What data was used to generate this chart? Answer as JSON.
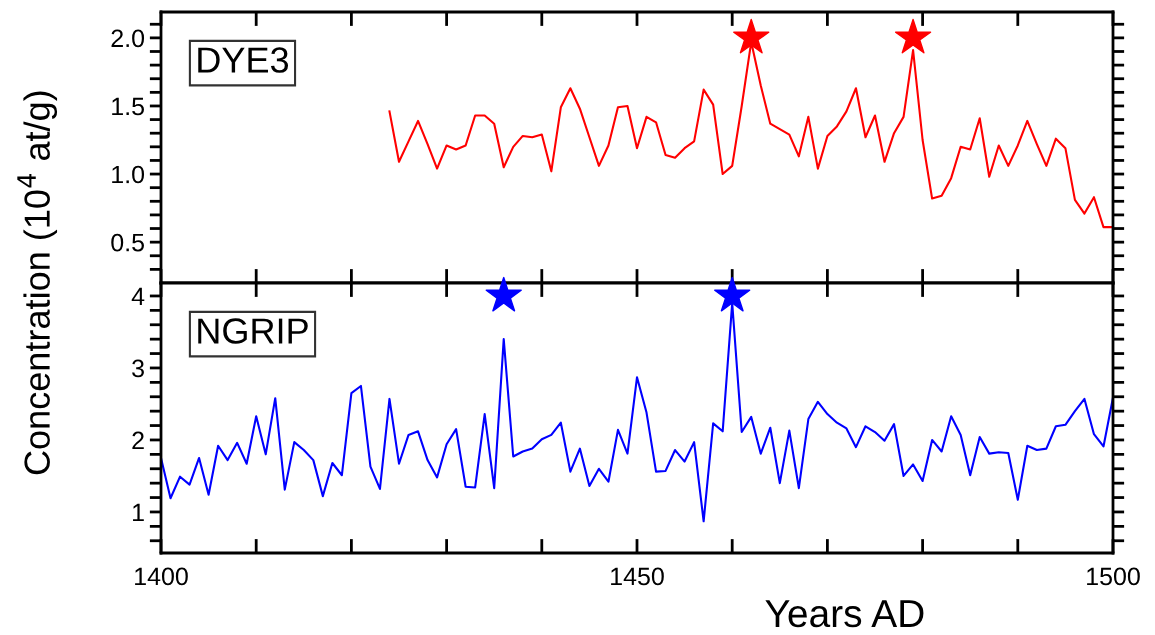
{
  "chart_data": [
    {
      "type": "line",
      "ylabel": "Concentration (10$^{4}$ at/g)",
      "xlim": [
        1400,
        1500
      ],
      "ylim": [
        0.2,
        2.19
      ],
      "xticks": [
        {
          "value": 1400,
          "label": null
        },
        {
          "value": 1410,
          "label": null
        },
        {
          "value": 1420,
          "label": null
        },
        {
          "value": 1430,
          "label": null
        },
        {
          "value": 1440,
          "label": null
        },
        {
          "value": 1450,
          "label": null
        },
        {
          "value": 1460,
          "label": null
        },
        {
          "value": 1470,
          "label": null
        },
        {
          "value": 1480,
          "label": null
        },
        {
          "value": 1490,
          "label": null
        },
        {
          "value": 1500,
          "label": null
        }
      ],
      "yticks": [
        {
          "value": 0.3,
          "label": null
        },
        {
          "value": 0.4,
          "label": null
        },
        {
          "value": 0.5,
          "label": "0.5"
        },
        {
          "value": 0.6,
          "label": null
        },
        {
          "value": 0.7,
          "label": null
        },
        {
          "value": 0.8,
          "label": null
        },
        {
          "value": 0.9,
          "label": null
        },
        {
          "value": 1.0,
          "label": "1.0"
        },
        {
          "value": 1.1,
          "label": null
        },
        {
          "value": 1.2,
          "label": null
        },
        {
          "value": 1.3,
          "label": null
        },
        {
          "value": 1.4,
          "label": null
        },
        {
          "value": 1.5,
          "label": "1.5"
        },
        {
          "value": 1.6,
          "label": null
        },
        {
          "value": 1.7,
          "label": null
        },
        {
          "value": 1.8,
          "label": null
        },
        {
          "value": 1.9,
          "label": null
        },
        {
          "value": 2.0,
          "label": "2.0"
        },
        {
          "value": 2.1,
          "label": null
        }
      ],
      "tick_labels": "y",
      "grid": false,
      "legend": "top left",
      "line_style": "solid",
      "series": [
        {
          "name": "DYE3",
          "color": "#ff0000",
          "marker": "none",
          "x": [
            1424,
            1425,
            1426,
            1427,
            1428,
            1429,
            1430,
            1431,
            1432,
            1433,
            1434,
            1435,
            1436,
            1437,
            1438,
            1439,
            1440,
            1441,
            1442,
            1443,
            1444,
            1445,
            1446,
            1447,
            1448,
            1449,
            1450,
            1451,
            1452,
            1453,
            1454,
            1455,
            1456,
            1457,
            1458,
            1459,
            1460,
            1461,
            1462,
            1463,
            1464,
            1465,
            1466,
            1467,
            1468,
            1469,
            1470,
            1471,
            1472,
            1473,
            1474,
            1475,
            1476,
            1477,
            1478,
            1479,
            1480,
            1481,
            1482,
            1483,
            1484,
            1485,
            1486,
            1487,
            1488,
            1489,
            1490,
            1491,
            1492,
            1493,
            1494,
            1495,
            1496,
            1497,
            1498,
            1499,
            1500
          ],
          "values": [
            1.46,
            1.09,
            1.24,
            1.39,
            1.22,
            1.04,
            1.21,
            1.18,
            1.21,
            1.43,
            1.43,
            1.37,
            1.05,
            1.2,
            1.28,
            1.27,
            1.29,
            1.02,
            1.49,
            1.63,
            1.48,
            1.27,
            1.06,
            1.21,
            1.49,
            1.5,
            1.19,
            1.42,
            1.38,
            1.14,
            1.12,
            1.19,
            1.24,
            1.62,
            1.51,
            1.0,
            1.06,
            1.5,
            1.97,
            1.65,
            1.37,
            1.33,
            1.29,
            1.13,
            1.42,
            1.04,
            1.28,
            1.35,
            1.46,
            1.63,
            1.27,
            1.43,
            1.09,
            1.3,
            1.42,
            1.91,
            1.25,
            0.82,
            0.84,
            0.97,
            1.2,
            1.18,
            1.41,
            0.98,
            1.21,
            1.06,
            1.21,
            1.39,
            1.22,
            1.06,
            1.26,
            1.19,
            0.81,
            0.71,
            0.83,
            0.61,
            0.61
          ]
        },
        {
          "type": "scatter",
          "color": "#ff0000",
          "marker": "star",
          "x": [
            1462,
            1479
          ],
          "values": [
            2.0,
            2.0
          ]
        }
      ]
    },
    {
      "type": "line",
      "xlabel": "Years AD",
      "xlim": [
        1400,
        1500
      ],
      "ylim": [
        0.43,
        4.18
      ],
      "xticks": [
        1400,
        {
          "value": 1410,
          "label": null
        },
        {
          "value": 1420,
          "label": null
        },
        {
          "value": 1430,
          "label": null
        },
        {
          "value": 1440,
          "label": null
        },
        1450,
        {
          "value": 1460,
          "label": null
        },
        {
          "value": 1470,
          "label": null
        },
        {
          "value": 1480,
          "label": null
        },
        {
          "value": 1490,
          "label": null
        },
        1500
      ],
      "yticks": [
        {
          "value": 0.6,
          "label": null
        },
        {
          "value": 0.8,
          "label": null
        },
        1,
        {
          "value": 1.2,
          "label": null
        },
        {
          "value": 1.4,
          "label": null
        },
        {
          "value": 1.6,
          "label": null
        },
        {
          "value": 1.8,
          "label": null
        },
        2,
        {
          "value": 2.2,
          "label": null
        },
        {
          "value": 2.4,
          "label": null
        },
        {
          "value": 2.6,
          "label": null
        },
        {
          "value": 2.8,
          "label": null
        },
        3,
        {
          "value": 3.2,
          "label": null
        },
        {
          "value": 3.4,
          "label": null
        },
        {
          "value": 3.6,
          "label": null
        },
        {
          "value": 3.8,
          "label": null
        },
        4
      ],
      "grid": false,
      "legend": "top left",
      "line_style": "solid",
      "series": [
        {
          "name": "NGRIP",
          "color": "#0000ff",
          "marker": "none",
          "x": [
            1400,
            1401,
            1402,
            1403,
            1404,
            1405,
            1406,
            1407,
            1408,
            1409,
            1410,
            1411,
            1412,
            1413,
            1414,
            1415,
            1416,
            1417,
            1418,
            1419,
            1420,
            1421,
            1422,
            1423,
            1424,
            1425,
            1426,
            1427,
            1428,
            1429,
            1430,
            1431,
            1432,
            1433,
            1434,
            1435,
            1436,
            1437,
            1438,
            1439,
            1440,
            1441,
            1442,
            1443,
            1444,
            1445,
            1446,
            1447,
            1448,
            1449,
            1450,
            1451,
            1452,
            1453,
            1454,
            1455,
            1456,
            1457,
            1458,
            1459,
            1460,
            1461,
            1462,
            1463,
            1464,
            1465,
            1466,
            1467,
            1468,
            1469,
            1470,
            1471,
            1472,
            1473,
            1474,
            1475,
            1476,
            1477,
            1478,
            1479,
            1480,
            1481,
            1482,
            1483,
            1484,
            1485,
            1486,
            1487,
            1488,
            1489,
            1490,
            1491,
            1492,
            1493,
            1494,
            1495,
            1496,
            1497,
            1498,
            1499,
            1500
          ],
          "values": [
            1.75,
            1.19,
            1.49,
            1.38,
            1.75,
            1.24,
            1.92,
            1.72,
            1.96,
            1.67,
            2.33,
            1.8,
            2.58,
            1.31,
            1.97,
            1.86,
            1.72,
            1.22,
            1.68,
            1.51,
            2.65,
            2.75,
            1.63,
            1.32,
            2.57,
            1.67,
            2.07,
            2.12,
            1.72,
            1.48,
            1.94,
            2.15,
            1.35,
            1.34,
            2.36,
            1.33,
            3.4,
            1.77,
            1.84,
            1.88,
            2.01,
            2.07,
            2.24,
            1.56,
            1.88,
            1.36,
            1.6,
            1.42,
            2.14,
            1.81,
            2.87,
            2.38,
            1.56,
            1.57,
            1.86,
            1.7,
            1.97,
            0.87,
            2.23,
            2.12,
            3.9,
            2.11,
            2.32,
            1.81,
            2.17,
            1.4,
            2.13,
            1.33,
            2.29,
            2.53,
            2.36,
            2.24,
            2.16,
            1.9,
            2.19,
            2.11,
            1.99,
            2.22,
            1.5,
            1.66,
            1.43,
            2.0,
            1.84,
            2.33,
            2.07,
            1.51,
            2.04,
            1.81,
            1.83,
            1.82,
            1.17,
            1.92,
            1.86,
            1.88,
            2.19,
            2.21,
            2.4,
            2.57,
            2.08,
            1.91,
            2.59
          ]
        },
        {
          "type": "scatter",
          "color": "#0000ff",
          "marker": "star",
          "x": [
            1436,
            1460
          ],
          "values": [
            4.0,
            4.0
          ]
        }
      ]
    }
  ]
}
